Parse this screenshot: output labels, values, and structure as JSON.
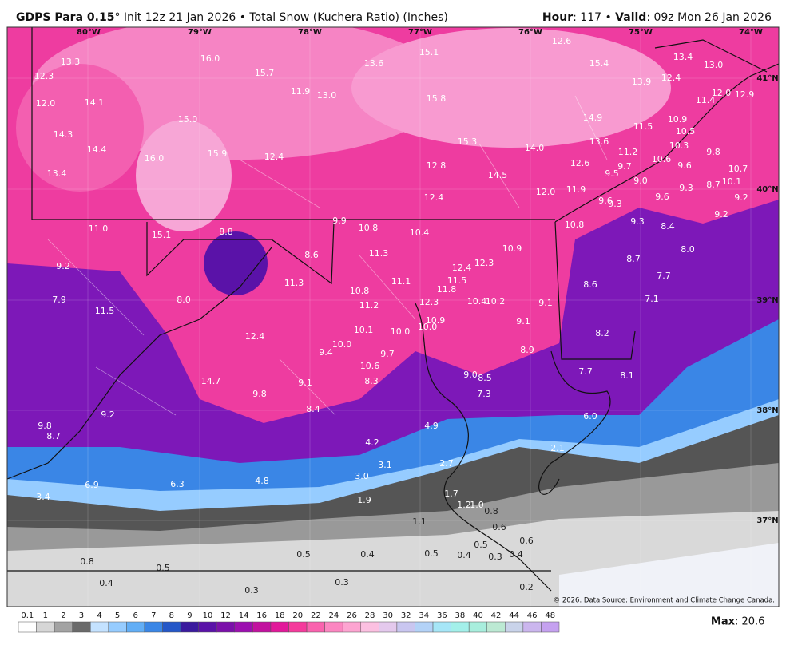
{
  "header": {
    "model": "GDPS Para 0.15",
    "init": "° Init 12z 21 Jan 2026 • Total Snow (Kuchera Ratio) (Inches)",
    "hour_label": "Hour",
    "hour_value": ": 117 • ",
    "valid_label": "Valid",
    "valid_value": ": 09z Mon 26 Jan 2026"
  },
  "map": {
    "lon_labels": [
      "80°W",
      "79°W",
      "78°W",
      "77°W",
      "76°W",
      "75°W",
      "74°W"
    ],
    "lat_labels": [
      "41°N",
      "40°N",
      "39°N",
      "38°N",
      "37°N"
    ],
    "snow_labels": [
      "13.3",
      "12.3",
      "16.0",
      "15.7",
      "13.6",
      "15.1",
      "12.6",
      "15.4",
      "13.4",
      "13.0",
      "12.0",
      "14.1",
      "11.9",
      "13.0",
      "15.8",
      "13.9",
      "12.4",
      "11.4",
      "12.0",
      "12.9",
      "14.3",
      "15.0",
      "14.9",
      "11.5",
      "10.9",
      "10.5",
      "14.4",
      "16.0",
      "15.9",
      "12.4",
      "15.3",
      "14.0",
      "13.6",
      "11.2",
      "10.3",
      "9.8",
      "13.4",
      "12.8",
      "14.5",
      "12.6",
      "9.7",
      "10.6",
      "9.6",
      "10.7",
      "9.5",
      "9.0",
      "9.3",
      "8.7",
      "10.1",
      "12.0",
      "11.9",
      "12.4",
      "9.6",
      "9.3",
      "9.6",
      "9.2",
      "9.2",
      "11.0",
      "15.1",
      "8.8",
      "9.9",
      "10.8",
      "10.4",
      "10.8",
      "9.3",
      "8.4",
      "8.6",
      "11.3",
      "10.9",
      "8.0",
      "9.2",
      "12.4",
      "12.3",
      "11.3",
      "11.1",
      "11.5",
      "11.8",
      "8.7",
      "7.7",
      "8.6",
      "7.9",
      "8.0",
      "10.8",
      "12.3",
      "10.4",
      "10.2",
      "9.1",
      "7.1",
      "11.5",
      "11.2",
      "10.9",
      "10.0",
      "9.1",
      "10.1",
      "10.0",
      "8.2",
      "12.4",
      "10.0",
      "9.4",
      "9.7",
      "8.9",
      "10.6",
      "9.0",
      "8.5",
      "7.7",
      "8.1",
      "14.7",
      "8.3",
      "9.1",
      "9.8",
      "7.3",
      "8.4",
      "9.2",
      "6.0",
      "4.9",
      "9.8",
      "8.7",
      "4.2",
      "2.1",
      "3.1",
      "2.7",
      "3.0",
      "6.9",
      "6.3",
      "4.8",
      "1.7",
      "1.9",
      "3.4",
      "1.2",
      "1.0",
      "0.8",
      "1.1",
      "0.6",
      "0.6",
      "0.5",
      "0.5",
      "0.4",
      "0.5",
      "0.4",
      "0.3",
      "0.4",
      "0.8",
      "0.5",
      "0.4",
      "0.3",
      "0.3",
      "0.2"
    ],
    "credit": "© 2026. Data Source: Environment and Climate Change Canada."
  },
  "legend": {
    "ticks": [
      0.1,
      1,
      2,
      3,
      4,
      5,
      6,
      7,
      8,
      9,
      10,
      12,
      14,
      16,
      18,
      20,
      22,
      24,
      26,
      28,
      30,
      32,
      34,
      36,
      38,
      40,
      42,
      44,
      46,
      48
    ],
    "colors": [
      "#ffffff",
      "#d6d6d6",
      "#a3a3a3",
      "#6a6a6a",
      "#c4e2ff",
      "#96ccff",
      "#62aef6",
      "#3a86e6",
      "#2457c8",
      "#3a1a9e",
      "#5a12a8",
      "#7b10aa",
      "#9c0fb0",
      "#c2119f",
      "#e2189a",
      "#f53a9c",
      "#fa62ae",
      "#fc86c1",
      "#fda4d1",
      "#fcc0e1",
      "#e4c9ed",
      "#c9c6f0",
      "#b3d2f7",
      "#a6e6f7",
      "#a3f0ea",
      "#a8eedd",
      "#bce9d3",
      "#c9d3ea",
      "#cbb6ee",
      "#c5a1f0"
    ],
    "max_label": "Max",
    "max_value": ": 20.6"
  }
}
